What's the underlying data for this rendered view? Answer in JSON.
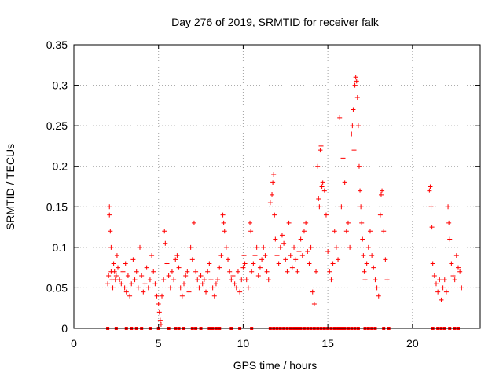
{
  "chart_data": {
    "type": "scatter",
    "title": "Day 276 of 2019, SRMTID for receiver falk",
    "xlabel": "GPS time / hours",
    "ylabel": "SRMTID / TECUs",
    "xlim": [
      0,
      24
    ],
    "ylim": [
      0,
      0.35
    ],
    "x_ticks": [
      0,
      5,
      10,
      15,
      20
    ],
    "x_tick_labels": [
      "0",
      "5",
      "10",
      "15",
      "20"
    ],
    "y_ticks": [
      0,
      0.05,
      0.1,
      0.15,
      0.2,
      0.25,
      0.3,
      0.35
    ],
    "y_tick_labels": [
      "0",
      "0.05",
      "0.1",
      "0.15",
      "0.2",
      "0.25",
      "0.3",
      "0.35"
    ],
    "grid": true,
    "series": [
      {
        "name": "SRMTID",
        "marker": "+",
        "color": "#ff0000",
        "points": [
          [
            2.0,
            0.055
          ],
          [
            2.05,
            0.065
          ],
          [
            2.1,
            0.15
          ],
          [
            2.1,
            0.14
          ],
          [
            2.15,
            0.12
          ],
          [
            2.2,
            0.1
          ],
          [
            2.2,
            0.07
          ],
          [
            2.25,
            0.06
          ],
          [
            2.3,
            0.05
          ],
          [
            2.35,
            0.08
          ],
          [
            2.4,
            0.07
          ],
          [
            2.45,
            0.06
          ],
          [
            2.5,
            0.065
          ],
          [
            2.55,
            0.09
          ],
          [
            2.6,
            0.075
          ],
          [
            2.7,
            0.06
          ],
          [
            2.8,
            0.055
          ],
          [
            2.9,
            0.07
          ],
          [
            3.0,
            0.05
          ],
          [
            3.05,
            0.08
          ],
          [
            3.1,
            0.045
          ],
          [
            3.2,
            0.065
          ],
          [
            3.3,
            0.04
          ],
          [
            3.4,
            0.055
          ],
          [
            3.5,
            0.085
          ],
          [
            3.6,
            0.06
          ],
          [
            3.7,
            0.07
          ],
          [
            3.8,
            0.05
          ],
          [
            3.9,
            0.1
          ],
          [
            4.0,
            0.065
          ],
          [
            4.1,
            0.045
          ],
          [
            4.2,
            0.055
          ],
          [
            4.3,
            0.075
          ],
          [
            4.4,
            0.05
          ],
          [
            4.5,
            0.06
          ],
          [
            4.6,
            0.09
          ],
          [
            4.7,
            0.07
          ],
          [
            4.8,
            0.055
          ],
          [
            4.9,
            0.04
          ],
          [
            5.0,
            0.03
          ],
          [
            5.05,
            0.02
          ],
          [
            5.1,
            0.01
          ],
          [
            5.15,
            0.005
          ],
          [
            5.2,
            0.04
          ],
          [
            5.3,
            0.06
          ],
          [
            5.35,
            0.12
          ],
          [
            5.4,
            0.105
          ],
          [
            5.5,
            0.08
          ],
          [
            5.6,
            0.065
          ],
          [
            5.7,
            0.05
          ],
          [
            5.8,
            0.07
          ],
          [
            5.9,
            0.06
          ],
          [
            6.0,
            0.085
          ],
          [
            6.1,
            0.09
          ],
          [
            6.2,
            0.075
          ],
          [
            6.3,
            0.05
          ],
          [
            6.4,
            0.04
          ],
          [
            6.5,
            0.055
          ],
          [
            6.6,
            0.065
          ],
          [
            6.7,
            0.07
          ],
          [
            6.8,
            0.045
          ],
          [
            6.9,
            0.1
          ],
          [
            7.0,
            0.085
          ],
          [
            7.1,
            0.13
          ],
          [
            7.2,
            0.07
          ],
          [
            7.3,
            0.06
          ],
          [
            7.4,
            0.05
          ],
          [
            7.5,
            0.065
          ],
          [
            7.6,
            0.055
          ],
          [
            7.7,
            0.06
          ],
          [
            7.8,
            0.045
          ],
          [
            7.9,
            0.07
          ],
          [
            8.0,
            0.08
          ],
          [
            8.1,
            0.06
          ],
          [
            8.2,
            0.05
          ],
          [
            8.3,
            0.04
          ],
          [
            8.4,
            0.055
          ],
          [
            8.5,
            0.06
          ],
          [
            8.6,
            0.075
          ],
          [
            8.7,
            0.09
          ],
          [
            8.8,
            0.14
          ],
          [
            8.85,
            0.13
          ],
          [
            8.9,
            0.12
          ],
          [
            9.0,
            0.1
          ],
          [
            9.1,
            0.085
          ],
          [
            9.2,
            0.07
          ],
          [
            9.3,
            0.06
          ],
          [
            9.4,
            0.065
          ],
          [
            9.5,
            0.055
          ],
          [
            9.6,
            0.05
          ],
          [
            9.7,
            0.07
          ],
          [
            9.8,
            0.045
          ],
          [
            9.9,
            0.06
          ],
          [
            10.0,
            0.075
          ],
          [
            10.05,
            0.09
          ],
          [
            10.1,
            0.08
          ],
          [
            10.2,
            0.06
          ],
          [
            10.3,
            0.05
          ],
          [
            10.4,
            0.13
          ],
          [
            10.45,
            0.12
          ],
          [
            10.5,
            0.07
          ],
          [
            10.6,
            0.08
          ],
          [
            10.7,
            0.09
          ],
          [
            10.8,
            0.1
          ],
          [
            10.9,
            0.065
          ],
          [
            11.0,
            0.075
          ],
          [
            11.1,
            0.085
          ],
          [
            11.2,
            0.1
          ],
          [
            11.3,
            0.09
          ],
          [
            11.4,
            0.07
          ],
          [
            11.5,
            0.06
          ],
          [
            11.6,
            0.155
          ],
          [
            11.7,
            0.165
          ],
          [
            11.75,
            0.18
          ],
          [
            11.8,
            0.19
          ],
          [
            11.85,
            0.14
          ],
          [
            11.9,
            0.11
          ],
          [
            12.0,
            0.09
          ],
          [
            12.1,
            0.08
          ],
          [
            12.2,
            0.1
          ],
          [
            12.3,
            0.115
          ],
          [
            12.4,
            0.105
          ],
          [
            12.5,
            0.085
          ],
          [
            12.6,
            0.07
          ],
          [
            12.7,
            0.13
          ],
          [
            12.8,
            0.09
          ],
          [
            12.9,
            0.075
          ],
          [
            13.0,
            0.1
          ],
          [
            13.1,
            0.085
          ],
          [
            13.2,
            0.07
          ],
          [
            13.3,
            0.095
          ],
          [
            13.4,
            0.11
          ],
          [
            13.5,
            0.09
          ],
          [
            13.6,
            0.12
          ],
          [
            13.7,
            0.13
          ],
          [
            13.8,
            0.095
          ],
          [
            13.9,
            0.08
          ],
          [
            14.0,
            0.1
          ],
          [
            14.1,
            0.045
          ],
          [
            14.2,
            0.03
          ],
          [
            14.3,
            0.07
          ],
          [
            14.4,
            0.2
          ],
          [
            14.45,
            0.16
          ],
          [
            14.5,
            0.15
          ],
          [
            14.55,
            0.22
          ],
          [
            14.6,
            0.225
          ],
          [
            14.65,
            0.175
          ],
          [
            14.7,
            0.18
          ],
          [
            14.8,
            0.17
          ],
          [
            14.9,
            0.14
          ],
          [
            15.0,
            0.095
          ],
          [
            15.1,
            0.07
          ],
          [
            15.2,
            0.06
          ],
          [
            15.3,
            0.08
          ],
          [
            15.4,
            0.12
          ],
          [
            15.5,
            0.1
          ],
          [
            15.6,
            0.085
          ],
          [
            15.7,
            0.26
          ],
          [
            15.8,
            0.15
          ],
          [
            15.9,
            0.21
          ],
          [
            16.0,
            0.18
          ],
          [
            16.1,
            0.12
          ],
          [
            16.2,
            0.13
          ],
          [
            16.3,
            0.1
          ],
          [
            16.4,
            0.24
          ],
          [
            16.45,
            0.25
          ],
          [
            16.5,
            0.27
          ],
          [
            16.55,
            0.22
          ],
          [
            16.6,
            0.3
          ],
          [
            16.65,
            0.31
          ],
          [
            16.7,
            0.305
          ],
          [
            16.75,
            0.285
          ],
          [
            16.8,
            0.25
          ],
          [
            16.85,
            0.2
          ],
          [
            16.9,
            0.17
          ],
          [
            16.95,
            0.15
          ],
          [
            17.0,
            0.13
          ],
          [
            17.05,
            0.11
          ],
          [
            17.1,
            0.09
          ],
          [
            17.15,
            0.07
          ],
          [
            17.2,
            0.06
          ],
          [
            17.3,
            0.08
          ],
          [
            17.4,
            0.1
          ],
          [
            17.5,
            0.12
          ],
          [
            17.6,
            0.09
          ],
          [
            17.7,
            0.075
          ],
          [
            17.8,
            0.06
          ],
          [
            17.9,
            0.05
          ],
          [
            18.0,
            0.04
          ],
          [
            18.1,
            0.14
          ],
          [
            18.15,
            0.165
          ],
          [
            18.2,
            0.17
          ],
          [
            18.3,
            0.12
          ],
          [
            18.4,
            0.085
          ],
          [
            18.5,
            0.06
          ],
          [
            21.0,
            0.17
          ],
          [
            21.05,
            0.175
          ],
          [
            21.1,
            0.15
          ],
          [
            21.15,
            0.125
          ],
          [
            21.2,
            0.08
          ],
          [
            21.3,
            0.065
          ],
          [
            21.4,
            0.055
          ],
          [
            21.5,
            0.045
          ],
          [
            21.6,
            0.06
          ],
          [
            21.7,
            0.035
          ],
          [
            21.8,
            0.05
          ],
          [
            21.9,
            0.06
          ],
          [
            22.0,
            0.045
          ],
          [
            22.1,
            0.15
          ],
          [
            22.15,
            0.13
          ],
          [
            22.2,
            0.11
          ],
          [
            22.3,
            0.08
          ],
          [
            22.4,
            0.065
          ],
          [
            22.5,
            0.06
          ],
          [
            22.6,
            0.09
          ],
          [
            22.7,
            0.075
          ],
          [
            22.8,
            0.07
          ],
          [
            22.9,
            0.05
          ]
        ]
      }
    ],
    "zero_marks": [
      2.0,
      2.5,
      3.1,
      3.4,
      3.7,
      4.0,
      4.5,
      5.0,
      5.6,
      6.0,
      6.2,
      6.5,
      7.0,
      7.2,
      7.5,
      8.0,
      8.2,
      8.4,
      8.6,
      9.3,
      9.8,
      10.5,
      11.6,
      11.8,
      12.0,
      12.2,
      12.4,
      12.6,
      12.8,
      13.0,
      13.2,
      13.4,
      13.6,
      13.8,
      14.0,
      14.2,
      14.4,
      14.6,
      14.8,
      15.0,
      15.2,
      15.4,
      15.6,
      15.8,
      16.0,
      16.2,
      16.4,
      16.6,
      16.8,
      17.2,
      17.4,
      17.6,
      17.8,
      18.3,
      18.6,
      21.2,
      21.5,
      21.7,
      21.9,
      22.2,
      22.5,
      22.7
    ]
  }
}
